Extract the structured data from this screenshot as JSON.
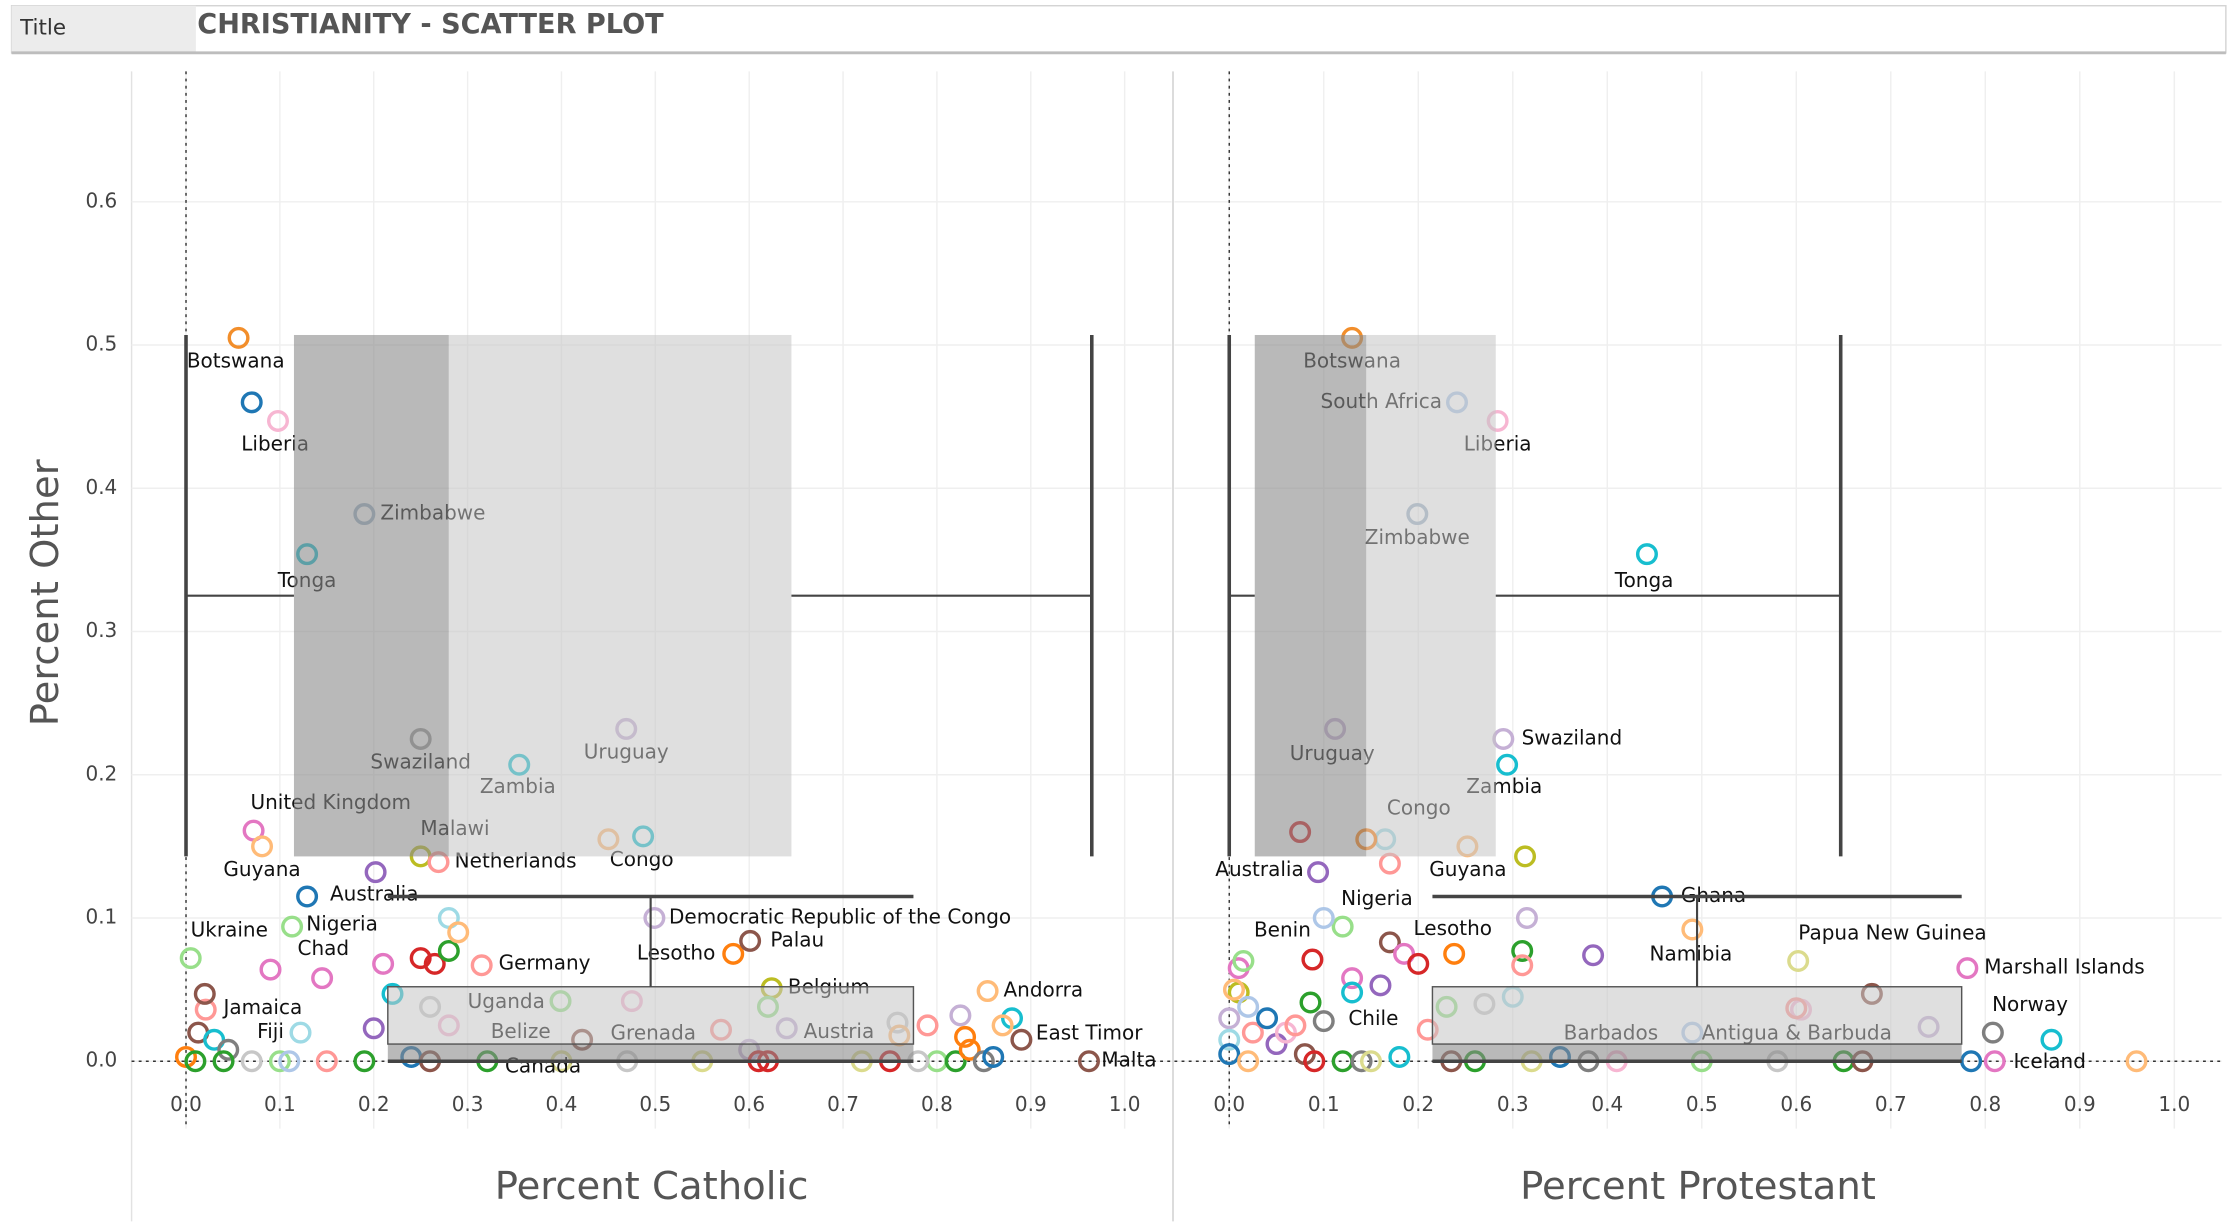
{
  "header": {
    "label": "Title",
    "title": "CHRISTIANITY - SCATTER PLOT"
  },
  "chart_data": [
    {
      "type": "scatter",
      "x_label": "Percent Catholic",
      "y_label": "Percent Other",
      "xlim": [
        -0.058,
        1.05
      ],
      "ylim": [
        -0.047,
        0.691
      ],
      "xticks": [
        {
          "value": 0,
          "label": "0.0"
        },
        0.1,
        0.2,
        0.3,
        0.4,
        0.5,
        0.6,
        0.7,
        0.8,
        0.9,
        {
          "value": 1,
          "label": "1.0"
        }
      ],
      "yticks": [
        {
          "value": 0,
          "label": "0.0"
        },
        0.1,
        0.2,
        0.3,
        0.4,
        0.5,
        0.6
      ],
      "grid": true,
      "x_box": {
        "whiskers": [
          0,
          0.965
        ],
        "quartiles": [
          0.115,
          0.28,
          0.645
        ],
        "span": [
          0.143,
          0.507
        ],
        "center": 0.325
      },
      "y_box": {
        "whiskers": [
          0,
          0.115
        ],
        "quartiles": [
          0,
          0.012,
          0.052
        ],
        "span": [
          0.215,
          0.775
        ],
        "center": 0.495
      },
      "labels": [
        "Botswana",
        null,
        "Liberia",
        "Zimbabwe",
        "Tonga",
        "Swaziland",
        "Zambia",
        "Uruguay",
        "United Kingdom",
        "Guyana",
        "Malawi",
        "Netherlands",
        null,
        "Congo",
        null,
        "Australia",
        "Democratic Republic of the Congo",
        "Ukraine",
        "Nigeria",
        "Chad",
        "Lesotho",
        "Palau",
        "Germany",
        "Belgium",
        "Andorra",
        "Jamaica",
        "Fiji",
        "Uganda",
        "Belize",
        "Grenada",
        "Austria",
        "East Timor",
        "Malta",
        "Canada",
        null,
        null,
        null,
        null,
        null,
        null,
        null,
        null,
        null,
        null,
        null,
        null,
        null,
        null,
        null,
        null,
        null,
        null,
        null,
        null,
        null,
        null,
        null,
        null,
        null,
        null,
        null,
        null,
        null,
        null,
        null,
        null,
        null,
        null,
        null,
        null,
        null,
        null,
        null,
        null,
        null,
        null,
        null,
        null,
        null
      ],
      "x": [
        0.056,
        0.07,
        0.098,
        0.19,
        0.129,
        0.25,
        0.355,
        0.469,
        0.072,
        0.081,
        0.25,
        0.269,
        0.45,
        0.487,
        0.202,
        0.129,
        0.499,
        0.005,
        0.113,
        0.09,
        0.583,
        0.601,
        0.315,
        0.624,
        0.854,
        0.021,
        0.122,
        0.399,
        0.422,
        0.475,
        0.758,
        0.88,
        0.962,
        0.321,
        0.013,
        0.02,
        0.03,
        0.045,
        0.0,
        0.01,
        0.04,
        0.07,
        0.1,
        0.11,
        0.15,
        0.19,
        0.2,
        0.22,
        0.145,
        0.21,
        0.25,
        0.265,
        0.28,
        0.28,
        0.29,
        0.26,
        0.28,
        0.24,
        0.26,
        0.4,
        0.47,
        0.55,
        0.57,
        0.6,
        0.62,
        0.61,
        0.62,
        0.64,
        0.72,
        0.75,
        0.76,
        0.79,
        0.8,
        0.82,
        0.825,
        0.83,
        0.835,
        0.85,
        0.86,
        0.87,
        0.89,
        0.78
      ],
      "values": [
        0.505,
        0.46,
        0.447,
        0.382,
        0.354,
        0.225,
        0.207,
        0.232,
        0.161,
        0.15,
        0.143,
        0.139,
        0.155,
        0.157,
        0.132,
        0.115,
        0.1,
        0.072,
        0.094,
        0.064,
        0.075,
        0.084,
        0.067,
        0.051,
        0.049,
        0.036,
        0.02,
        0.042,
        0.015,
        0.042,
        0.027,
        0.03,
        0,
        0,
        0.02,
        0.047,
        0.015,
        0.008,
        0.003,
        0,
        0,
        0,
        0,
        0,
        0,
        0,
        0.023,
        0.047,
        0.058,
        0.068,
        0.072,
        0.068,
        0.077,
        0.1,
        0.09,
        0.038,
        0.025,
        0.003,
        0,
        0,
        0,
        0,
        0.022,
        0.008,
        0,
        0,
        0.038,
        0.023,
        0,
        0,
        0.018,
        0.025,
        0,
        0,
        0.032,
        0.017,
        0.008,
        0,
        0.003,
        0.025,
        0.015,
        0
      ],
      "colors": [
        "#f28e2b",
        "#1f77b4",
        "#f7b6d2",
        "#9fb3c8",
        "#17becf",
        "#9c9c9c",
        "#17becf",
        "#c5b0d5",
        "#e377c2",
        "#ffbb78",
        "#bcbd22",
        "#ff9896",
        "#ffbb78",
        "#17becf",
        "#9467bd",
        "#1f77b4",
        "#c5b0d5",
        "#98df8a",
        "#98df8a",
        "#e377c2",
        "#ff7f0e",
        "#8c564b",
        "#ff9896",
        "#bcbd22",
        "#ffbb78",
        "#ff9896",
        "#9edae5",
        "#98df8a",
        "#8c564b",
        "#f7b6d2",
        "#c7c7c7",
        "#17becf",
        "#8c564b",
        "#2ca02c",
        "#8c564b",
        "#8c564b",
        "#17becf",
        "#7f7f7f",
        "#ff7f0e",
        "#2ca02c",
        "#2ca02c",
        "#c7c7c7",
        "#98df8a",
        "#aec7e8",
        "#ff9896",
        "#2ca02c",
        "#9467bd",
        "#17becf",
        "#e377c2",
        "#e377c2",
        "#d62728",
        "#d62728",
        "#2ca02c",
        "#9edae5",
        "#ffbb78",
        "#c7c7c7",
        "#f7b6d2",
        "#1f77b4",
        "#8c564b",
        "#dbdb8d",
        "#c7c7c7",
        "#dbdb8d",
        "#ff9896",
        "#c5b0d5",
        "#d62728",
        "#d62728",
        "#98df8a",
        "#c5b0d5",
        "#dbdb8d",
        "#d62728",
        "#ffbb78",
        "#ff9896",
        "#98df8a",
        "#2ca02c",
        "#c5b0d5",
        "#ff7f0e",
        "#ff7f0e",
        "#7f7f7f",
        "#1f77b4",
        "#ffbb78",
        "#8c564b",
        "#c7c7c7"
      ]
    },
    {
      "type": "scatter",
      "x_label": "Percent Protestant",
      "xlim": [
        -0.058,
        1.05
      ],
      "ylim": [
        -0.047,
        0.691
      ],
      "xticks": [
        {
          "value": 0,
          "label": "0.0"
        },
        0.1,
        0.2,
        0.3,
        0.4,
        0.5,
        0.6,
        0.7,
        0.8,
        0.9,
        {
          "value": 1,
          "label": "1.0"
        }
      ],
      "yticks": [
        0,
        0.1,
        0.2,
        0.3,
        0.4,
        0.5,
        0.6
      ],
      "grid": true,
      "x_box": {
        "whiskers": [
          0,
          0.647
        ],
        "quartiles": [
          0.027,
          0.145,
          0.282
        ],
        "span": [
          0.143,
          0.507
        ],
        "center": 0.325
      },
      "y_box": {
        "whiskers": [
          0,
          0.115
        ],
        "quartiles": [
          0,
          0.012,
          0.052
        ],
        "span": [
          0.215,
          0.775
        ],
        "center": 0.495
      },
      "labels": [
        "Botswana",
        "South Africa",
        "Liberia",
        "Zimbabwe",
        "Tonga",
        "Uruguay",
        "Swaziland",
        "Zambia",
        null,
        "Congo",
        "Australia",
        "Guyana",
        "Nigeria",
        "Ghana",
        "Benin",
        "Lesotho",
        "Namibia",
        "Papua New Guinea",
        "Marshall Islands",
        "Chile",
        "Barbados",
        "Antigua & Barbuda",
        "Norway",
        "Iceland",
        null,
        null,
        null,
        null,
        null,
        null,
        null,
        null,
        null,
        null,
        null,
        null,
        null,
        null,
        null,
        null,
        null,
        null,
        null,
        null,
        null,
        null,
        null,
        null,
        null,
        null,
        null,
        null,
        null,
        null,
        null,
        null,
        null,
        null,
        null,
        null,
        null,
        null,
        null,
        null,
        null,
        null,
        null,
        null,
        null,
        null
      ],
      "x": [
        0.13,
        0.241,
        0.284,
        0.199,
        0.442,
        0.112,
        0.29,
        0.294,
        0.165,
        0.252,
        0.094,
        0.313,
        0.12,
        0.458,
        0.088,
        0.238,
        0.49,
        0.602,
        0.781,
        0.086,
        0.49,
        0.605,
        0.808,
        0.785,
        0.0,
        0.01,
        0.005,
        0.01,
        0.015,
        0.02,
        0.025,
        0.0,
        0.0,
        0.02,
        0.04,
        0.05,
        0.06,
        0.07,
        0.08,
        0.09,
        0.1,
        0.1,
        0.075,
        0.145,
        0.17,
        0.13,
        0.16,
        0.13,
        0.17,
        0.185,
        0.2,
        0.12,
        0.14,
        0.15,
        0.18,
        0.21,
        0.23,
        0.235,
        0.27,
        0.26,
        0.31,
        0.31,
        0.3,
        0.315,
        0.32,
        0.35,
        0.38,
        0.385,
        0.41,
        0.5,
        0.58,
        0.6,
        0.65,
        0.68,
        0.67,
        0.74,
        0.87,
        0.81,
        0.96
      ],
      "values": [
        0.505,
        0.46,
        0.447,
        0.382,
        0.354,
        0.232,
        0.225,
        0.207,
        0.155,
        0.15,
        0.132,
        0.143,
        0.094,
        0.115,
        0.071,
        0.075,
        0.092,
        0.07,
        0.065,
        0.041,
        0.02,
        0.036,
        0.02,
        0,
        0.03,
        0.048,
        0.05,
        0.065,
        0.07,
        0.038,
        0.02,
        0.015,
        0.005,
        0,
        0.03,
        0.012,
        0.02,
        0.025,
        0.005,
        0,
        0.028,
        0.1,
        0.16,
        0.155,
        0.138,
        0.058,
        0.053,
        0.048,
        0.083,
        0.075,
        0.068,
        0,
        0,
        0,
        0.003,
        0.022,
        0.038,
        0,
        0.04,
        0,
        0.077,
        0.067,
        0.045,
        0.1,
        0,
        0.003,
        0,
        0.074,
        0,
        0,
        0,
        0.037,
        0,
        0.047,
        0,
        0.024,
        0.015,
        0,
        0
      ],
      "colors": [
        "#f28e2b",
        "#aec7e8",
        "#f7b6d2",
        "#9fb3c8",
        "#17becf",
        "#c5b0d5",
        "#c5b0d5",
        "#17becf",
        "#9edae5",
        "#ffbb78",
        "#9467bd",
        "#bcbd22",
        "#98df8a",
        "#1f77b4",
        "#d62728",
        "#ff7f0e",
        "#ffbb78",
        "#dbdb8d",
        "#e377c2",
        "#2ca02c",
        "#aec7e8",
        "#f7b6d2",
        "#7f7f7f",
        "#1f77b4",
        "#c5b0d5",
        "#bcbd22",
        "#ffbb78",
        "#e377c2",
        "#98df8a",
        "#aec7e8",
        "#ff9896",
        "#9edae5",
        "#1f77b4",
        "#ffbb78",
        "#1f77b4",
        "#9467bd",
        "#f7b6d2",
        "#ff9896",
        "#8c564b",
        "#d62728",
        "#7f7f7f",
        "#aec7e8",
        "#d62728",
        "#ff7f0e",
        "#ff9896",
        "#e377c2",
        "#9467bd",
        "#17becf",
        "#8c564b",
        "#e377c2",
        "#d62728",
        "#2ca02c",
        "#7f7f7f",
        "#dbdb8d",
        "#17becf",
        "#ff9896",
        "#98df8a",
        "#8c564b",
        "#c7c7c7",
        "#2ca02c",
        "#2ca02c",
        "#ff9896",
        "#9edae5",
        "#c5b0d5",
        "#dbdb8d",
        "#1f77b4",
        "#7f7f7f",
        "#9467bd",
        "#f7b6d2",
        "#98df8a",
        "#c7c7c7",
        "#ff9896",
        "#2ca02c",
        "#8c564b",
        "#8c564b",
        "#c5b0d5",
        "#17becf",
        "#e377c2",
        "#ffbb78"
      ]
    }
  ]
}
